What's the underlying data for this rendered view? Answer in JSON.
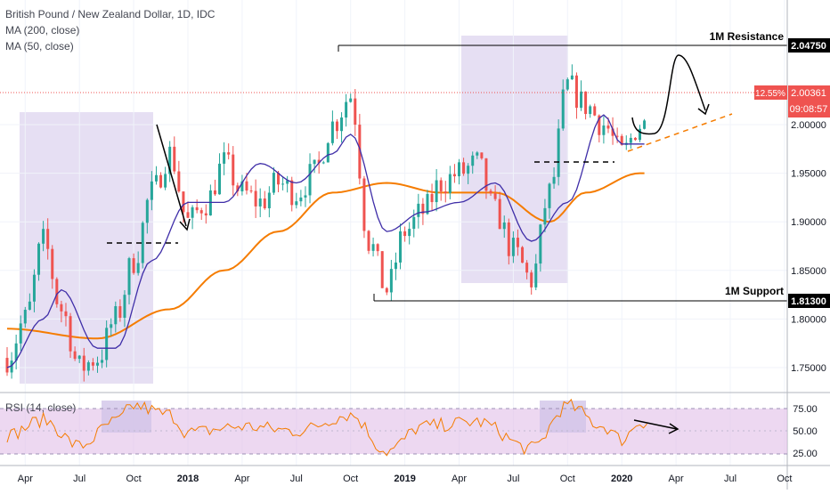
{
  "legend": {
    "title": "British Pound / New Zealand Dollar, 1D, IDC",
    "ma200": "MA (200, close)",
    "ma50": "MA (50, close)"
  },
  "rsi_label": "RSI (14, close)",
  "colors": {
    "up": "#26a69a",
    "down": "#ef5350",
    "ma200": "#f57c00",
    "ma50": "#3f2ea8",
    "rsi": "#f57c00",
    "highlight": "#d1c4e9",
    "rsi_band": "#e1bee7",
    "price_tag": "#ef5350"
  },
  "price_scale": {
    "ticks": [
      "1.75000",
      "1.80000",
      "1.85000",
      "1.90000",
      "1.95000",
      "2.00000"
    ]
  },
  "rsi_scale": {
    "ticks": [
      "25.00",
      "50.00",
      "75.00"
    ]
  },
  "time_axis": [
    "Apr",
    "Jul",
    "Oct",
    "2018",
    "Apr",
    "Jul",
    "Oct",
    "2019",
    "Apr",
    "Jul",
    "Oct",
    "2020",
    "Apr",
    "Jul",
    "Oct"
  ],
  "annotations": {
    "resistance_label": "1M Resistance",
    "resistance_value": "2.04750",
    "support_label": "1M Support",
    "support_value": "1.81300",
    "current_change": "12.55%",
    "current_price": "2.00361",
    "countdown": "09:08:57"
  },
  "chart_data": {
    "type": "candlestick",
    "title": "British Pound / New Zealand Dollar, 1D, IDC",
    "x_range": [
      "2017-03",
      "2020-12"
    ],
    "y_range": [
      1.73,
      2.07
    ],
    "ohlc_anchors": [
      {
        "date": "2017-03",
        "close": 1.76
      },
      {
        "date": "2017-04",
        "close": 1.8
      },
      {
        "date": "2017-05",
        "close": 1.88
      },
      {
        "date": "2017-06",
        "close": 1.81
      },
      {
        "date": "2017-07",
        "close": 1.75
      },
      {
        "date": "2017-08",
        "close": 1.76
      },
      {
        "date": "2017-09",
        "close": 1.8
      },
      {
        "date": "2017-10",
        "close": 1.86
      },
      {
        "date": "2017-11",
        "close": 1.93
      },
      {
        "date": "2017-12",
        "close": 1.97
      },
      {
        "date": "2018-01",
        "close": 1.9
      },
      {
        "date": "2018-02",
        "close": 1.92
      },
      {
        "date": "2018-03",
        "close": 1.96
      },
      {
        "date": "2018-04",
        "close": 1.93
      },
      {
        "date": "2018-05",
        "close": 1.92
      },
      {
        "date": "2018-06",
        "close": 1.94
      },
      {
        "date": "2018-07",
        "close": 1.93
      },
      {
        "date": "2018-08",
        "close": 1.95
      },
      {
        "date": "2018-09",
        "close": 2.0
      },
      {
        "date": "2018-10",
        "close": 2.03
      },
      {
        "date": "2018-11",
        "close": 1.88
      },
      {
        "date": "2018-12",
        "close": 1.83
      },
      {
        "date": "2019-01",
        "close": 1.89
      },
      {
        "date": "2019-02",
        "close": 1.91
      },
      {
        "date": "2019-03",
        "close": 1.94
      },
      {
        "date": "2019-04",
        "close": 1.95
      },
      {
        "date": "2019-05",
        "close": 1.96
      },
      {
        "date": "2019-06",
        "close": 1.91
      },
      {
        "date": "2019-07",
        "close": 1.87
      },
      {
        "date": "2019-08",
        "close": 1.84
      },
      {
        "date": "2019-09",
        "close": 1.93
      },
      {
        "date": "2019-10",
        "close": 2.04
      },
      {
        "date": "2019-11",
        "close": 2.02
      },
      {
        "date": "2019-12",
        "close": 2.0
      },
      {
        "date": "2020-01",
        "close": 1.97
      },
      {
        "date": "2020-02",
        "close": 2.0
      }
    ],
    "ma50_anchors": [
      {
        "date": "2017-03",
        "value": 1.75
      },
      {
        "date": "2017-05",
        "value": 1.8
      },
      {
        "date": "2017-06",
        "value": 1.83
      },
      {
        "date": "2017-08",
        "value": 1.77
      },
      {
        "date": "2017-09",
        "value": 1.77
      },
      {
        "date": "2017-11",
        "value": 1.86
      },
      {
        "date": "2018-01",
        "value": 1.92
      },
      {
        "date": "2018-03",
        "value": 1.92
      },
      {
        "date": "2018-05",
        "value": 1.96
      },
      {
        "date": "2018-07",
        "value": 1.94
      },
      {
        "date": "2018-09",
        "value": 1.97
      },
      {
        "date": "2018-10",
        "value": 1.99
      },
      {
        "date": "2018-12",
        "value": 1.89
      },
      {
        "date": "2019-02",
        "value": 1.91
      },
      {
        "date": "2019-04",
        "value": 1.92
      },
      {
        "date": "2019-06",
        "value": 1.94
      },
      {
        "date": "2019-08",
        "value": 1.88
      },
      {
        "date": "2019-10",
        "value": 1.92
      },
      {
        "date": "2019-12",
        "value": 2.01
      },
      {
        "date": "2020-01",
        "value": 1.98
      },
      {
        "date": "2020-02",
        "value": 1.98
      }
    ],
    "ma200_anchors": [
      {
        "date": "2017-03",
        "value": 1.79
      },
      {
        "date": "2017-08",
        "value": 1.78
      },
      {
        "date": "2017-12",
        "value": 1.81
      },
      {
        "date": "2018-03",
        "value": 1.85
      },
      {
        "date": "2018-06",
        "value": 1.89
      },
      {
        "date": "2018-09",
        "value": 1.93
      },
      {
        "date": "2018-12",
        "value": 1.94
      },
      {
        "date": "2019-03",
        "value": 1.93
      },
      {
        "date": "2019-06",
        "value": 1.93
      },
      {
        "date": "2019-09",
        "value": 1.9
      },
      {
        "date": "2019-11",
        "value": 1.93
      },
      {
        "date": "2020-02",
        "value": 1.95
      }
    ],
    "horizontal_levels": [
      {
        "label": "1M Resistance",
        "value": 2.0475
      },
      {
        "label": "1M Support",
        "value": 1.813
      }
    ],
    "rsi": {
      "ylim": [
        15,
        85
      ],
      "bands": [
        30,
        70
      ],
      "anchors": [
        {
          "date": "2017-03",
          "value": 45
        },
        {
          "date": "2017-05",
          "value": 62
        },
        {
          "date": "2017-07",
          "value": 33
        },
        {
          "date": "2017-09",
          "value": 60
        },
        {
          "date": "2017-10",
          "value": 78
        },
        {
          "date": "2017-12",
          "value": 68
        },
        {
          "date": "2018-01",
          "value": 48
        },
        {
          "date": "2018-04",
          "value": 55
        },
        {
          "date": "2018-07",
          "value": 50
        },
        {
          "date": "2018-10",
          "value": 68
        },
        {
          "date": "2018-12",
          "value": 27
        },
        {
          "date": "2019-02",
          "value": 55
        },
        {
          "date": "2019-05",
          "value": 60
        },
        {
          "date": "2019-08",
          "value": 30
        },
        {
          "date": "2019-10",
          "value": 78
        },
        {
          "date": "2019-12",
          "value": 55
        },
        {
          "date": "2020-01",
          "value": 40
        },
        {
          "date": "2020-02",
          "value": 60
        }
      ]
    }
  }
}
